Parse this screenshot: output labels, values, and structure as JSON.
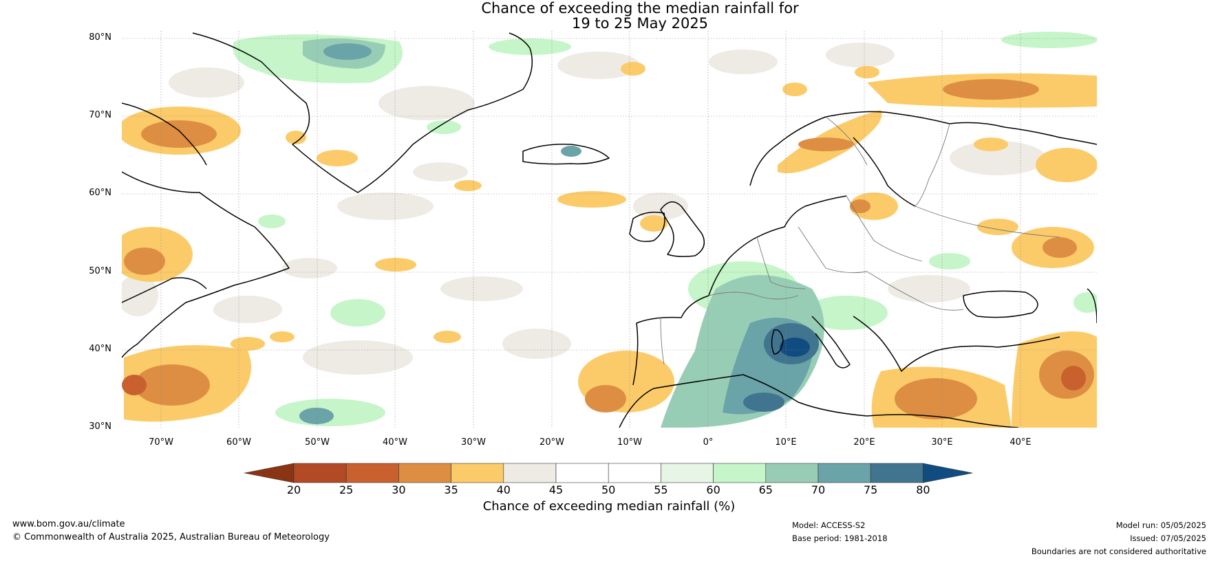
{
  "title": {
    "line1": "Chance of exceeding the median rainfall for",
    "line2": "19 to 25 May 2025"
  },
  "axes": {
    "lat_labels": [
      "80°N",
      "70°N",
      "60°N",
      "50°N",
      "40°N",
      "30°N"
    ],
    "lon_labels": [
      "70°W",
      "60°W",
      "50°W",
      "40°W",
      "30°W",
      "20°W",
      "10°W",
      "0°",
      "10°E",
      "20°E",
      "30°E",
      "40°E"
    ]
  },
  "colorbar": {
    "label": "Chance of exceeding median rainfall (%)",
    "ticks": [
      "20",
      "25",
      "30",
      "35",
      "40",
      "45",
      "50",
      "55",
      "60",
      "65",
      "70",
      "75",
      "80"
    ],
    "colors": [
      "#8a3413",
      "#b24a26",
      "#c9612f",
      "#dd8e43",
      "#fccb69",
      "#eeebe5",
      "#ffffff",
      "#ffffff",
      "#e6f5e6",
      "#c5f5c8",
      "#98cdb5",
      "#6aa3a8",
      "#41758f",
      "#104c80"
    ]
  },
  "footer": {
    "url": "www.bom.gov.au/climate",
    "copyright": "© Commonwealth of Australia 2025, Australian Bureau of Meteorology",
    "model": "Model: ACCESS-S2",
    "base_period": "Base period: 1981-2018",
    "model_run": "Model run: 05/05/2025",
    "issued": "Issued: 07/05/2025",
    "disclaimer": "Boundaries are not considered authoritative"
  }
}
